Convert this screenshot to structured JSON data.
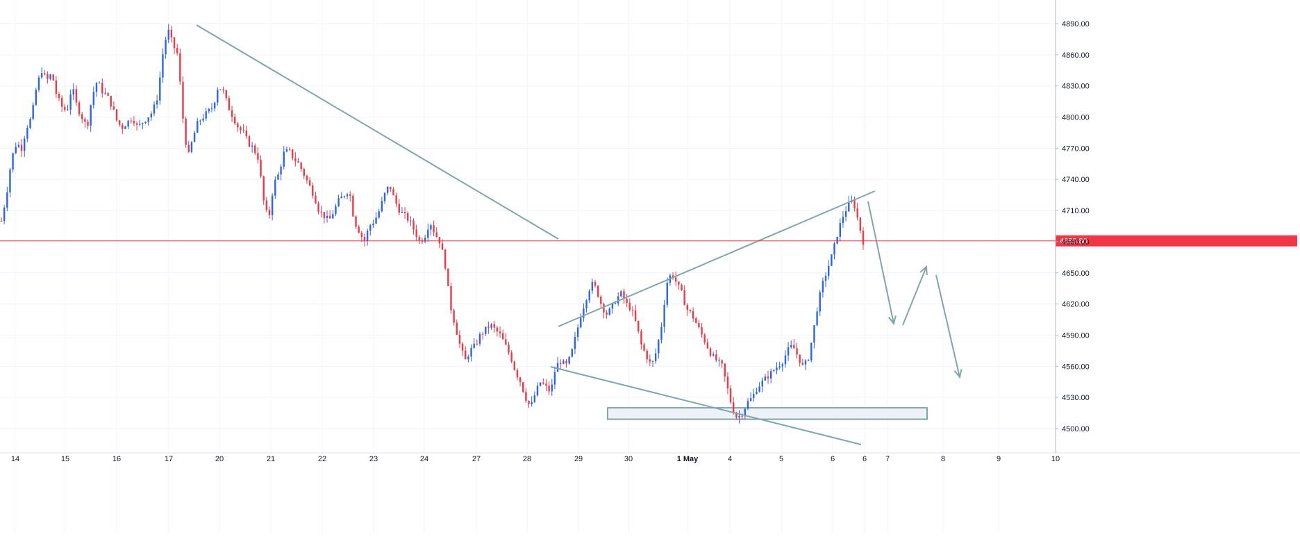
{
  "chart_data": {
    "type": "candlestick",
    "title": "",
    "xlabel": "",
    "ylabel": "",
    "ylim": [
      4493,
      4905
    ],
    "y_ticks": [
      4500,
      4530,
      4560,
      4590,
      4620,
      4650,
      4680,
      4710,
      4740,
      4770,
      4800,
      4830,
      4860,
      4890
    ],
    "y_tick_labels": [
      "4500.00",
      "4530.00",
      "4560.00",
      "4590.00",
      "4620.00",
      "4650.00",
      "4680.00",
      "4710.00",
      "4740.00",
      "4770.00",
      "4800.00",
      "4830.00",
      "4860.00",
      "4890.00"
    ],
    "x_tick_labels": [
      "14",
      "15",
      "16",
      "17",
      "20",
      "21",
      "22",
      "23",
      "24",
      "27",
      "28",
      "29",
      "30",
      "1 May",
      "4",
      "5",
      "6",
      "6",
      "7",
      "8",
      "9",
      "10"
    ],
    "grid": true,
    "current_price": 4680.8,
    "current_price_label": "4680.80",
    "colors": {
      "up": "#2962ff",
      "down": "#f23645",
      "grid": "#f0f3fa",
      "trendline": "#7fa6a9",
      "price_line": "#f23645",
      "zone_fill": "#eef1f8"
    },
    "price_path": [
      4700,
      4725,
      4760,
      4775,
      4770,
      4790,
      4800,
      4830,
      4845,
      4835,
      4842,
      4820,
      4810,
      4805,
      4830,
      4810,
      4800,
      4790,
      4820,
      4835,
      4825,
      4820,
      4810,
      4795,
      4790,
      4795,
      4800,
      4790,
      4795,
      4800,
      4805,
      4820,
      4860,
      4885,
      4870,
      4860,
      4800,
      4760,
      4780,
      4795,
      4800,
      4805,
      4810,
      4830,
      4825,
      4810,
      4800,
      4790,
      4785,
      4775,
      4770,
      4760,
      4720,
      4700,
      4735,
      4745,
      4765,
      4768,
      4760,
      4755,
      4745,
      4735,
      4725,
      4710,
      4705,
      4700,
      4710,
      4720,
      4725,
      4730,
      4700,
      4690,
      4680,
      4695,
      4700,
      4710,
      4725,
      4735,
      4720,
      4710,
      4705,
      4700,
      4690,
      4680,
      4685,
      4700,
      4688,
      4680,
      4660,
      4620,
      4600,
      4580,
      4565,
      4575,
      4580,
      4590,
      4595,
      4600,
      4595,
      4590,
      4580,
      4570,
      4555,
      4545,
      4530,
      4520,
      4535,
      4545,
      4540,
      4535,
      4560,
      4565,
      4560,
      4570,
      4590,
      4610,
      4625,
      4640,
      4635,
      4620,
      4610,
      4615,
      4625,
      4630,
      4620,
      4615,
      4600,
      4580,
      4570,
      4560,
      4575,
      4600,
      4640,
      4650,
      4640,
      4630,
      4615,
      4610,
      4600,
      4590,
      4580,
      4570,
      4565,
      4560,
      4540,
      4520,
      4510,
      4515,
      4525,
      4530,
      4540,
      4545,
      4550,
      4555,
      4560,
      4565,
      4575,
      4580,
      4570,
      4560,
      4565,
      4590,
      4620,
      4640,
      4655,
      4670,
      4690,
      4705,
      4715,
      4720,
      4700,
      4680
    ]
  }
}
